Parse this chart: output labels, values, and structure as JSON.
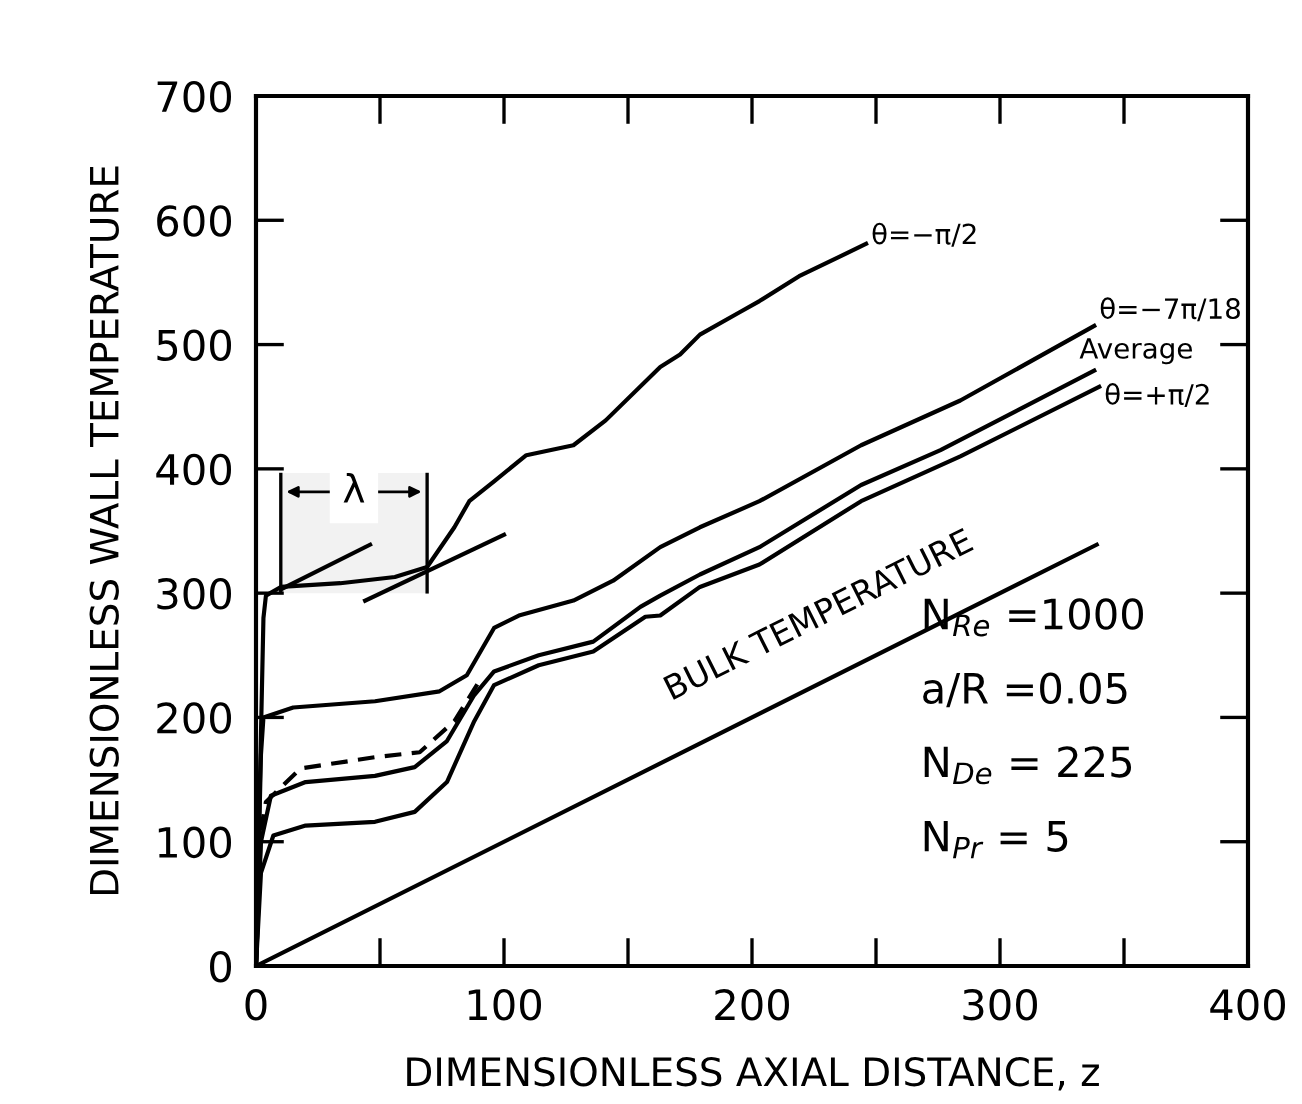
{
  "chart_data": {
    "type": "line",
    "xlabel": "DIMENSIONLESS AXIAL DISTANCE, z",
    "ylabel": "DIMENSIONLESS WALL TEMPERATURE",
    "xlim": [
      0,
      400
    ],
    "ylim": [
      0,
      700
    ],
    "xticks": [
      0,
      {
        "value": 50,
        "label": null
      },
      100,
      {
        "value": 150,
        "label": null
      },
      200,
      {
        "value": 250,
        "label": null
      },
      300,
      {
        "value": 350,
        "label": null
      },
      400
    ],
    "yticks": [
      0,
      100,
      200,
      300,
      400,
      500,
      600,
      700
    ],
    "grid": false,
    "marker": "none",
    "series": [
      {
        "color": "#000000",
        "line_style": "solid",
        "x": [
          0,
          3,
          4,
          10,
          34,
          56,
          69,
          80,
          86,
          96,
          109,
          128,
          141,
          163,
          171,
          179,
          195,
          203,
          219,
          246
        ],
        "values": [
          0,
          280,
          298,
          305,
          308,
          313,
          321,
          353,
          374,
          390,
          411,
          419,
          439,
          482,
          492,
          508,
          526,
          535,
          555,
          581
        ]
      },
      {
        "color": "#000000",
        "line_style": "solid",
        "x": [
          0,
          2,
          3,
          15,
          48,
          74,
          85,
          96,
          106,
          128,
          144,
          163,
          179,
          203,
          244,
          284,
          338
        ],
        "values": [
          0,
          170,
          200,
          208,
          213,
          221,
          234,
          272,
          282,
          294,
          310,
          337,
          353,
          374,
          419,
          455,
          515
        ]
      },
      {
        "color": "#000000",
        "line_style": "dashed",
        "x": [
          0,
          2,
          4,
          18,
          48,
          66,
          80,
          90
        ],
        "values": [
          0,
          110,
          132,
          159,
          168,
          172,
          197,
          229
        ]
      },
      {
        "color": "#000000",
        "line_style": "solid",
        "x": [
          0,
          2,
          6,
          20,
          48,
          64,
          77,
          88,
          96,
          114,
          136,
          155,
          163,
          179,
          203,
          244,
          276,
          338
        ],
        "values": [
          0,
          100,
          137,
          148,
          153,
          160,
          181,
          218,
          237,
          250,
          261,
          289,
          298,
          315,
          337,
          387,
          415,
          479
        ]
      },
      {
        "color": "#000000",
        "line_style": "solid",
        "x": [
          0,
          2,
          7,
          20,
          48,
          64,
          77,
          88,
          96,
          114,
          136,
          157,
          163,
          179,
          203,
          244,
          284,
          340
        ],
        "values": [
          0,
          75,
          105,
          113,
          116,
          124,
          148,
          197,
          226,
          242,
          253,
          281,
          282,
          305,
          323,
          374,
          410,
          466
        ]
      },
      {
        "color": "#000000",
        "line_style": "solid",
        "x": [
          0,
          339
        ],
        "values": [
          0,
          339
        ]
      },
      {
        "color": "#000000",
        "line_style": "solid",
        "x": [
          10,
          46
        ],
        "values": [
          303,
          339
        ]
      },
      {
        "color": "#000000",
        "line_style": "solid",
        "x": [
          44,
          100
        ],
        "values": [
          294,
          347
        ]
      }
    ],
    "bands": [
      {
        "axis": "x",
        "from": 10,
        "to": 69,
        "label": "λ"
      }
    ],
    "annotations": [
      {
        "text": "θ=−π/2",
        "x": 246,
        "y": 581
      },
      {
        "text": "θ=−7π/18",
        "x": 338,
        "y": 515
      },
      {
        "text": "Average",
        "x": 338,
        "y": 479
      },
      {
        "text": "θ=+π/2",
        "x": 340,
        "y": 466
      },
      "BULK TEMPERATURE",
      "N$_{Re}$ =1000",
      "a/R =0.05",
      "N$_{De}$ = 225",
      "N$_{Pr}$ = 5"
    ]
  }
}
